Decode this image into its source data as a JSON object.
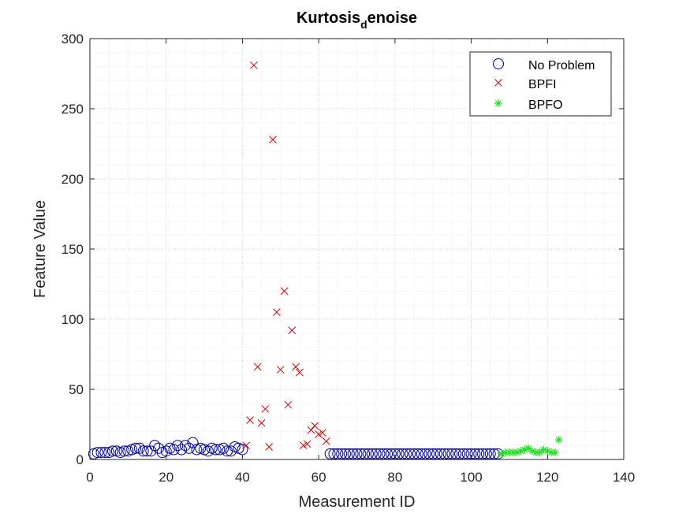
{
  "chart_data": {
    "type": "scatter",
    "title": {
      "main": "Kurtosis",
      "subscript": "d",
      "rest": "enoise"
    },
    "xlabel": "Measurement ID",
    "ylabel": "Feature Value",
    "xlim": [
      0,
      140
    ],
    "ylim": [
      0,
      300
    ],
    "xticks": [
      0,
      20,
      40,
      60,
      80,
      100,
      120,
      140
    ],
    "yticks": [
      0,
      50,
      100,
      150,
      200,
      250,
      300
    ],
    "xtick_labels": [
      "0",
      "20",
      "40",
      "60",
      "80",
      "100",
      "120",
      "140"
    ],
    "ytick_labels": [
      "0",
      "50",
      "100",
      "150",
      "200",
      "250",
      "300"
    ],
    "grid": true,
    "minor_grid": true,
    "legend_position": "top-right",
    "series": [
      {
        "name": "No Problem",
        "marker": "circle",
        "color": "#0000a0",
        "points": [
          [
            1,
            4
          ],
          [
            2,
            5
          ],
          [
            3,
            5
          ],
          [
            4,
            5
          ],
          [
            5,
            5
          ],
          [
            6,
            6
          ],
          [
            7,
            6
          ],
          [
            8,
            5
          ],
          [
            9,
            6
          ],
          [
            10,
            6
          ],
          [
            11,
            7
          ],
          [
            12,
            8
          ],
          [
            13,
            8
          ],
          [
            14,
            6
          ],
          [
            15,
            6
          ],
          [
            16,
            6
          ],
          [
            17,
            10
          ],
          [
            18,
            8
          ],
          [
            19,
            5
          ],
          [
            20,
            6
          ],
          [
            21,
            8
          ],
          [
            22,
            7
          ],
          [
            23,
            10
          ],
          [
            24,
            7
          ],
          [
            25,
            10
          ],
          [
            26,
            8
          ],
          [
            27,
            12
          ],
          [
            28,
            7
          ],
          [
            29,
            8
          ],
          [
            30,
            7
          ],
          [
            31,
            6
          ],
          [
            32,
            8
          ],
          [
            33,
            7
          ],
          [
            34,
            7
          ],
          [
            35,
            8
          ],
          [
            36,
            6
          ],
          [
            37,
            6
          ],
          [
            38,
            9
          ],
          [
            39,
            8
          ],
          [
            40,
            7
          ],
          [
            63,
            4
          ],
          [
            64,
            4
          ],
          [
            65,
            4
          ],
          [
            66,
            4
          ],
          [
            67,
            4
          ],
          [
            68,
            4
          ],
          [
            69,
            4
          ],
          [
            70,
            4
          ],
          [
            71,
            4
          ],
          [
            72,
            4
          ],
          [
            73,
            4
          ],
          [
            74,
            4
          ],
          [
            75,
            4
          ],
          [
            76,
            4
          ],
          [
            77,
            4
          ],
          [
            78,
            4
          ],
          [
            79,
            4
          ],
          [
            80,
            4
          ],
          [
            81,
            4
          ],
          [
            82,
            4
          ],
          [
            83,
            4
          ],
          [
            84,
            4
          ],
          [
            85,
            4
          ],
          [
            86,
            4
          ],
          [
            87,
            4
          ],
          [
            88,
            4
          ],
          [
            89,
            4
          ],
          [
            90,
            4
          ],
          [
            91,
            4
          ],
          [
            92,
            4
          ],
          [
            93,
            4
          ],
          [
            94,
            4
          ],
          [
            95,
            4
          ],
          [
            96,
            4
          ],
          [
            97,
            4
          ],
          [
            98,
            4
          ],
          [
            99,
            4
          ],
          [
            100,
            4
          ],
          [
            101,
            4
          ],
          [
            102,
            4
          ],
          [
            103,
            4
          ],
          [
            104,
            4
          ],
          [
            105,
            4
          ],
          [
            106,
            4
          ],
          [
            107,
            4
          ]
        ]
      },
      {
        "name": "BPFI",
        "marker": "x",
        "color": "#cc0000",
        "points": [
          [
            41,
            10
          ],
          [
            42,
            28
          ],
          [
            43,
            281
          ],
          [
            44,
            66
          ],
          [
            45,
            26
          ],
          [
            46,
            36
          ],
          [
            47,
            9
          ],
          [
            48,
            228
          ],
          [
            49,
            105
          ],
          [
            50,
            64
          ],
          [
            51,
            120
          ],
          [
            52,
            39
          ],
          [
            53,
            92
          ],
          [
            54,
            66
          ],
          [
            55,
            62
          ],
          [
            56,
            10
          ],
          [
            57,
            11
          ],
          [
            58,
            21
          ],
          [
            59,
            24
          ],
          [
            60,
            18
          ],
          [
            61,
            19
          ],
          [
            62,
            13
          ]
        ]
      },
      {
        "name": "BPFO",
        "marker": "asterisk",
        "color": "#22dd22",
        "points": [
          [
            108,
            4
          ],
          [
            109,
            5
          ],
          [
            110,
            5
          ],
          [
            111,
            5
          ],
          [
            112,
            5
          ],
          [
            113,
            6
          ],
          [
            114,
            7
          ],
          [
            115,
            8
          ],
          [
            116,
            6
          ],
          [
            117,
            5
          ],
          [
            118,
            5
          ],
          [
            119,
            7
          ],
          [
            120,
            6
          ],
          [
            121,
            5
          ],
          [
            122,
            5
          ],
          [
            123,
            14
          ]
        ]
      }
    ]
  }
}
